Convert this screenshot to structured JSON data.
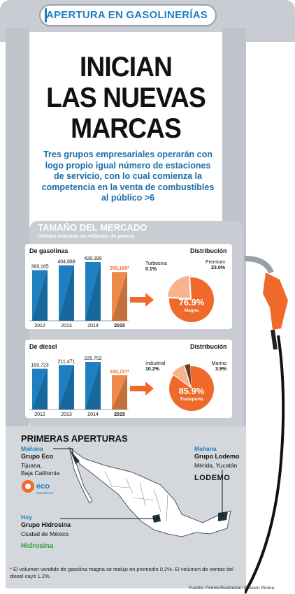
{
  "header": {
    "kicker": "APERTURA EN GASOLINERÍAS",
    "headline_lines": [
      "INICIAN",
      "LAS NUEVAS",
      "MARCAS"
    ],
    "subtitle": "Tres grupos empresariales operarán con logo propio igual número de estaciones de servicio, con lo cual comienza la competencia en la venta de combustibles al público >6"
  },
  "market": {
    "title": "TAMAÑO DEL MERCADO",
    "subtitle": "(Ventas internas en millones de pesos)"
  },
  "chart_data": [
    {
      "type": "bar",
      "title": "De gasolinas",
      "categories": [
        "2012",
        "2013",
        "2014",
        "2015"
      ],
      "values": [
        369165,
        404888,
        428399,
        356160
      ],
      "value_labels": [
        "369,165",
        "404,888",
        "428,399",
        "356,160*"
      ],
      "highlight_color": "#f08a4b",
      "base_color": "#1f7fc0"
    },
    {
      "type": "pie",
      "title": "Distribución",
      "labels": [
        "Magna",
        "Premium",
        "Turbosina"
      ],
      "values": [
        76.9,
        23.0,
        0.1
      ],
      "value_labels": [
        "76.9%",
        "23.0%",
        "0.1%"
      ],
      "colors": [
        "#ef6a2a",
        "#f7b48c",
        "#6b3d22"
      ]
    },
    {
      "type": "bar",
      "title": "De diesel",
      "categories": [
        "2012",
        "2013",
        "2014",
        "2015"
      ],
      "values": [
        193723,
        211471,
        225702,
        162727
      ],
      "value_labels": [
        "193,723",
        "211,471",
        "225,702",
        "162,727*"
      ],
      "highlight_color": "#f08a4b",
      "base_color": "#1f7fc0"
    },
    {
      "type": "pie",
      "title": "Distribución",
      "labels": [
        "Transporte",
        "Industrial",
        "Marino"
      ],
      "values": [
        85.9,
        10.2,
        3.9
      ],
      "value_labels": [
        "85.9%",
        "10.2%",
        "3.9%"
      ],
      "colors": [
        "#ef6a2a",
        "#f7b48c",
        "#6b3d22"
      ]
    }
  ],
  "openings": {
    "title": "PRIMERAS APERTURAS",
    "items": [
      {
        "day": "Mañana",
        "group": "Grupo Eco",
        "place_lines": [
          "Tijuana,",
          "Baja California"
        ],
        "logo": "eco",
        "logo_text": "eco",
        "logo_sub": "Gasolineras"
      },
      {
        "day": "Mañana",
        "group": "Grupo Lodemo",
        "place_lines": [
          "Mérida, Yucatán"
        ],
        "logo": "lodemo",
        "logo_text": "LODEMO"
      },
      {
        "day": "Hoy",
        "group": "Grupo Hidrosina",
        "place_lines": [
          "Ciudad de México"
        ],
        "logo": "hidrosina",
        "logo_text": "Hidrosina"
      }
    ]
  },
  "footnote": "* El volumen vendido de gasolina magna se redujo en promedio 0.2%. El volumen de ventas del diesel cayó 1.2%.",
  "source": "Fuente: Pemex/Ilustración: Ernesto Rivera"
}
